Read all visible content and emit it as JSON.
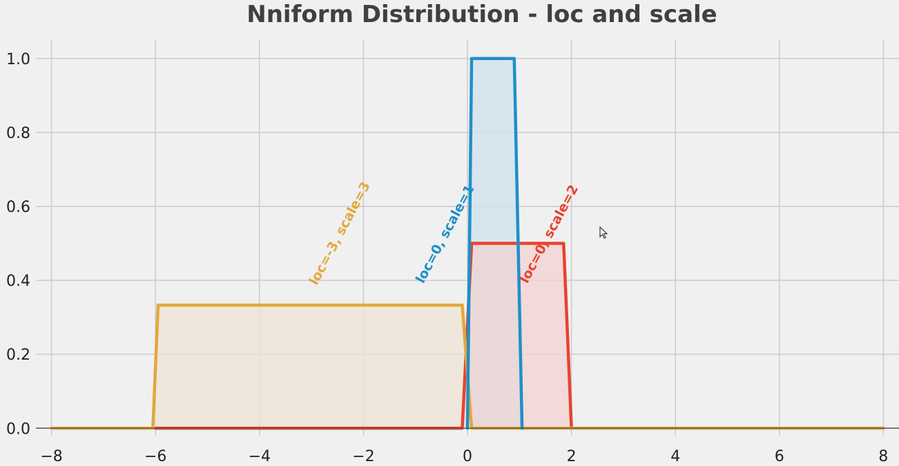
{
  "chart_data": {
    "type": "line",
    "title": "Nniform Distribution - loc and scale",
    "xlabel": "",
    "ylabel": "",
    "xlim": [
      -8.3,
      8.3
    ],
    "ylim": [
      -0.02,
      1.05
    ],
    "grid": true,
    "x_ticks": [
      -8,
      -6,
      -4,
      -2,
      0,
      2,
      4,
      6,
      8
    ],
    "x_tick_labels": [
      "−8",
      "−6",
      "−4",
      "−2",
      "0",
      "2",
      "4",
      "6",
      "8"
    ],
    "y_ticks": [
      0.0,
      0.2,
      0.4,
      0.6,
      0.8,
      1.0
    ],
    "y_tick_labels": [
      "0.0",
      "0.2",
      "0.4",
      "0.6",
      "0.8",
      "1.0"
    ],
    "series": [
      {
        "label": "loc=0, scale=1",
        "color": "#1f8fc9",
        "fill": "#cfe3ee",
        "x": [
          0.0,
          0.08,
          0.9,
          1.05
        ],
        "y": [
          0.0,
          1.0,
          1.0,
          0.0
        ],
        "label_anchor": [
          -0.85,
          0.39
        ]
      },
      {
        "label": "loc=0, scale=2",
        "color": "#e8432f",
        "fill": "#f2d3d1",
        "x": [
          -6.0,
          -0.1,
          0.08,
          1.85,
          2.0,
          8.0
        ],
        "y": [
          0.0,
          0.0,
          0.5,
          0.5,
          0.0,
          0.0
        ],
        "label_anchor": [
          1.15,
          0.39
        ]
      },
      {
        "label": "loc=-3, scale=3",
        "color": "#e2a83d",
        "fill": "#efe4d4",
        "x": [
          -8.0,
          -6.05,
          -5.95,
          -0.1,
          0.08,
          8.0
        ],
        "y": [
          0.0,
          0.0,
          0.333,
          0.333,
          0.0,
          0.0
        ],
        "label_anchor": [
          -2.9,
          0.385
        ]
      }
    ]
  }
}
